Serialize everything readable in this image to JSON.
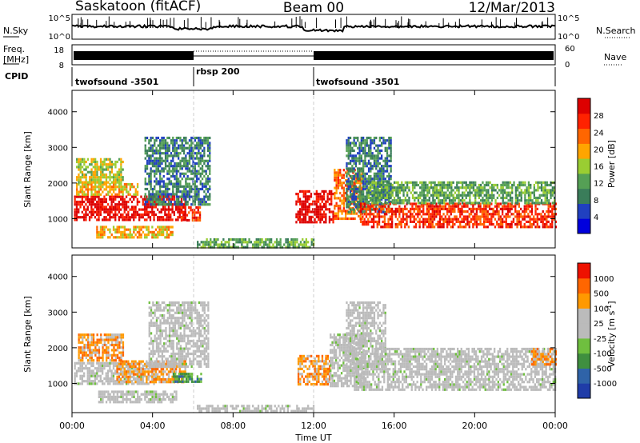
{
  "header": {
    "station": "Saskatoon (fitACF)",
    "beam": "Beam 00",
    "date": "12/Mar/2013"
  },
  "noise_panel": {
    "left_label": "N.Sky",
    "right_label": "N.Search",
    "ticks": [
      "10^5",
      "10^0"
    ]
  },
  "freq_panel": {
    "left_label_line1": "Freq.",
    "left_label_line2": "[MHz]",
    "left_ticks": [
      "18",
      "8"
    ],
    "right_label": "Nave",
    "right_ticks": [
      "60",
      "0"
    ]
  },
  "cpid_panel": {
    "label": "CPID",
    "segments": [
      {
        "name": "twofsound -3501",
        "start_h": 0,
        "end_h": 6
      },
      {
        "name": "rbsp 200",
        "start_h": 6,
        "end_h": 12
      },
      {
        "name": "twofsound -3501",
        "start_h": 12,
        "end_h": 24
      }
    ]
  },
  "time_axis": {
    "label": "Time UT",
    "ticks": [
      "00:00",
      "04:00",
      "08:00",
      "12:00",
      "16:00",
      "20:00",
      "00:00"
    ]
  },
  "colors": {
    "power_scale": [
      "#0000dd",
      "#2040c0",
      "#3a7d5a",
      "#55a055",
      "#9acd32",
      "#ffa500",
      "#ff6600",
      "#ff2200",
      "#dd0000"
    ],
    "velocity_scale": [
      "#1f3ca8",
      "#2f63a8",
      "#3f8f3f",
      "#6fbf3f",
      "#bbbbbb",
      "#bbbbbb",
      "#ff9900",
      "#ff6600",
      "#ee1100"
    ]
  },
  "chart_data": [
    {
      "type": "heatmap",
      "name": "power",
      "ylabel": "Slant Range [km]",
      "ylim": [
        180,
        4600
      ],
      "xlim_hours": [
        0,
        24
      ],
      "yticks": [
        "1000",
        "2000",
        "3000",
        "4000"
      ],
      "colorbar": {
        "label": "Power [dB]",
        "tick_labels": [
          "4",
          "8",
          "12",
          "16",
          "20",
          "24",
          "28"
        ]
      },
      "regions": [
        {
          "t0": 0.1,
          "t1": 5.6,
          "r0": 950,
          "r1": 1650,
          "level": 8
        },
        {
          "t0": 0.2,
          "t1": 3.3,
          "r0": 1650,
          "r1": 2000,
          "level": 5
        },
        {
          "t0": 0.2,
          "t1": 2.5,
          "r0": 2000,
          "r1": 2700,
          "level": 4
        },
        {
          "t0": 1.2,
          "t1": 5.0,
          "r0": 500,
          "r1": 800,
          "level": 5
        },
        {
          "t0": 5.4,
          "t1": 6.4,
          "r0": 950,
          "r1": 1350,
          "level": 7
        },
        {
          "t0": 3.6,
          "t1": 6.8,
          "r0": 1400,
          "r1": 3300,
          "level": 2
        },
        {
          "t0": 11.1,
          "t1": 13.0,
          "r0": 900,
          "r1": 1800,
          "level": 8
        },
        {
          "t0": 13.0,
          "t1": 14.4,
          "r0": 1000,
          "r1": 2400,
          "level": 6
        },
        {
          "t0": 13.6,
          "t1": 15.8,
          "r0": 1200,
          "r1": 3300,
          "level": 2
        },
        {
          "t0": 14.3,
          "t1": 24.0,
          "r0": 800,
          "r1": 1450,
          "level": 7
        },
        {
          "t0": 14.6,
          "t1": 24.0,
          "r0": 1450,
          "r1": 2050,
          "level": 3
        },
        {
          "t0": 6.2,
          "t1": 12.0,
          "r0": 200,
          "r1": 450,
          "level": 3
        }
      ]
    },
    {
      "type": "heatmap",
      "name": "velocity",
      "ylabel": "Slant Range [km]",
      "ylim": [
        180,
        4600
      ],
      "xlim_hours": [
        0,
        24
      ],
      "yticks": [
        "1000",
        "2000",
        "3000",
        "4000"
      ],
      "colorbar": {
        "label": "Velocity [m s^-1]",
        "tick_labels": [
          "1000",
          "500",
          "100",
          "25",
          "-25",
          "-100",
          "-500",
          "-1000"
        ]
      },
      "regions": [
        {
          "t0": 0.1,
          "t1": 4.2,
          "r0": 1000,
          "r1": 1600,
          "level": 4
        },
        {
          "t0": 2.2,
          "t1": 5.6,
          "r0": 1050,
          "r1": 1650,
          "level": 6
        },
        {
          "t0": 0.3,
          "t1": 2.5,
          "r0": 1650,
          "r1": 2400,
          "level": 6
        },
        {
          "t0": 1.3,
          "t1": 5.2,
          "r0": 500,
          "r1": 800,
          "level": 4
        },
        {
          "t0": 5.0,
          "t1": 6.4,
          "r0": 1050,
          "r1": 1300,
          "level": 2
        },
        {
          "t0": 3.8,
          "t1": 6.8,
          "r0": 1500,
          "r1": 3300,
          "level": 4
        },
        {
          "t0": 11.2,
          "t1": 12.8,
          "r0": 950,
          "r1": 1800,
          "level": 6
        },
        {
          "t0": 12.8,
          "t1": 14.6,
          "r0": 900,
          "r1": 2400,
          "level": 4
        },
        {
          "t0": 13.6,
          "t1": 15.6,
          "r0": 1500,
          "r1": 3300,
          "level": 4
        },
        {
          "t0": 14.0,
          "t1": 24.0,
          "r0": 800,
          "r1": 1650,
          "level": 4
        },
        {
          "t0": 15.0,
          "t1": 24.0,
          "r0": 1650,
          "r1": 2000,
          "level": 4
        },
        {
          "t0": 22.8,
          "t1": 24.0,
          "r0": 1550,
          "r1": 2000,
          "level": 6
        },
        {
          "t0": 6.2,
          "t1": 12.0,
          "r0": 200,
          "r1": 400,
          "level": 4
        }
      ]
    }
  ]
}
